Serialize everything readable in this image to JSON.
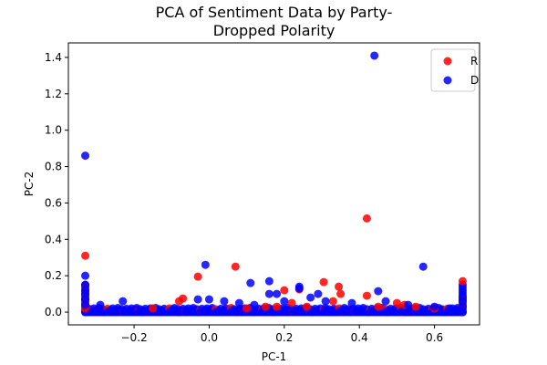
{
  "chart_data": {
    "type": "scatter",
    "title": [
      "PCA of Sentiment Data by Party-",
      "Dropped Polarity"
    ],
    "xlabel": "PC-1",
    "ylabel": "PC-2",
    "xlim": [
      -0.375,
      0.72
    ],
    "ylim": [
      -0.07,
      1.48
    ],
    "xticks": [
      -0.2,
      0.0,
      0.2,
      0.4,
      0.6
    ],
    "xtick_labels": [
      "−0.2",
      "0.0",
      "0.2",
      "0.4",
      "0.6"
    ],
    "yticks": [
      0.0,
      0.2,
      0.4,
      0.6,
      0.8,
      1.0,
      1.2,
      1.4
    ],
    "ytick_labels": [
      "0.0",
      "0.2",
      "0.4",
      "0.6",
      "0.8",
      "1.0",
      "1.2",
      "1.4"
    ],
    "grid": false,
    "legend_position": "top-right",
    "series": [
      {
        "name": "R",
        "color": "#ff0000",
        "points": [
          [
            -0.33,
            0.31
          ],
          [
            -0.33,
            0.14
          ],
          [
            -0.33,
            0.09
          ],
          [
            -0.33,
            0.05
          ],
          [
            -0.33,
            0.02
          ],
          [
            -0.03,
            0.195
          ],
          [
            0.07,
            0.25
          ],
          [
            0.42,
            0.515
          ],
          [
            -0.08,
            0.06
          ],
          [
            -0.07,
            0.075
          ],
          [
            0.18,
            0.03
          ],
          [
            0.2,
            0.12
          ],
          [
            0.22,
            0.05
          ],
          [
            0.24,
            0.125
          ],
          [
            0.26,
            0.03
          ],
          [
            0.305,
            0.165
          ],
          [
            0.33,
            0.06
          ],
          [
            0.345,
            0.14
          ],
          [
            0.35,
            0.1
          ],
          [
            0.42,
            0.09
          ],
          [
            0.5,
            0.05
          ],
          [
            0.52,
            0.04
          ],
          [
            0.55,
            0.03
          ],
          [
            0.1,
            0.02
          ],
          [
            0.15,
            0.03
          ],
          [
            -0.15,
            0.02
          ],
          [
            0.45,
            0.03
          ],
          [
            0.6,
            0.02
          ],
          [
            0.675,
            0.17
          ],
          [
            0.675,
            0.07
          ],
          [
            0.675,
            0.04
          ]
        ]
      },
      {
        "name": "D",
        "color": "#0000ff",
        "points": [
          [
            -0.33,
            0.86
          ],
          [
            -0.33,
            0.2
          ],
          [
            -0.33,
            0.15
          ],
          [
            -0.33,
            0.12
          ],
          [
            -0.33,
            0.1
          ],
          [
            -0.33,
            0.07
          ],
          [
            -0.33,
            0.04
          ],
          [
            0.44,
            1.41
          ],
          [
            0.57,
            0.25
          ],
          [
            -0.01,
            0.26
          ],
          [
            0.11,
            0.16
          ],
          [
            0.16,
            0.17
          ],
          [
            0.16,
            0.1
          ],
          [
            0.18,
            0.1
          ],
          [
            0.24,
            0.14
          ],
          [
            0.24,
            0.13
          ],
          [
            0.29,
            0.1
          ],
          [
            0.45,
            0.115
          ],
          [
            0.27,
            0.08
          ],
          [
            -0.03,
            0.07
          ],
          [
            0.0,
            0.07
          ],
          [
            -0.23,
            0.06
          ],
          [
            -0.29,
            0.04
          ],
          [
            0.04,
            0.06
          ],
          [
            0.08,
            0.05
          ],
          [
            0.12,
            0.04
          ],
          [
            0.2,
            0.06
          ],
          [
            0.31,
            0.06
          ],
          [
            0.38,
            0.05
          ],
          [
            0.47,
            0.06
          ],
          [
            0.53,
            0.04
          ],
          [
            0.6,
            0.03
          ],
          [
            0.64,
            0.02
          ],
          [
            0.675,
            0.03
          ],
          [
            0.675,
            0.06
          ],
          [
            0.675,
            0.08
          ]
        ]
      }
    ]
  }
}
